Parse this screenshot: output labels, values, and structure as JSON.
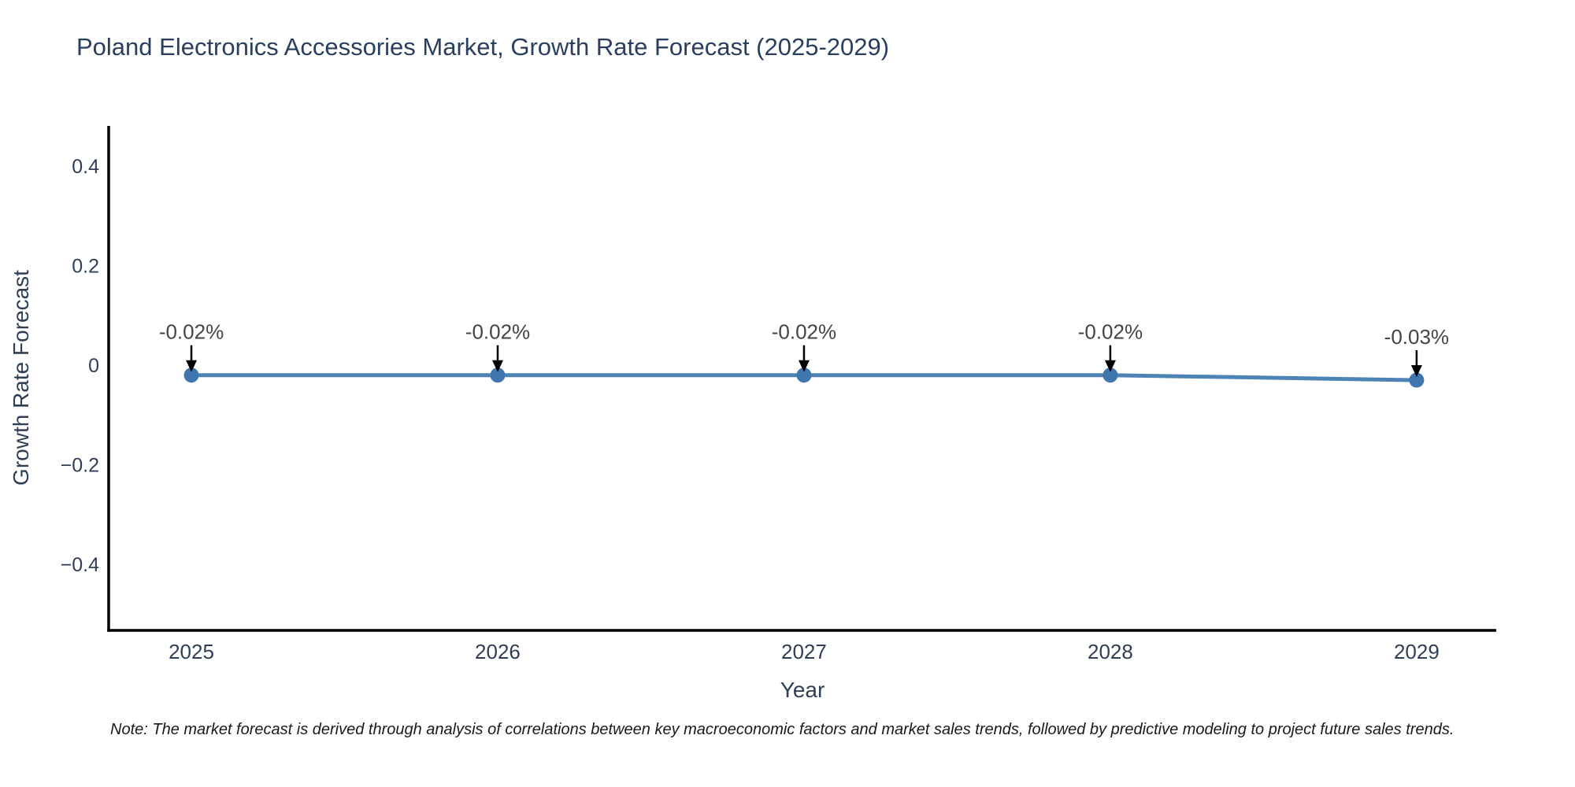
{
  "chart_data": {
    "type": "line",
    "title": "Poland Electronics Accessories Market, Growth Rate Forecast (2025-2029)",
    "xlabel": "Year",
    "ylabel": "Growth Rate Forecast",
    "note": "Note: The market forecast is derived through analysis of correlations between key macroeconomic factors and market sales trends, followed by predictive modeling to project future sales trends.",
    "x": [
      2025,
      2026,
      2027,
      2028,
      2029
    ],
    "xticks": [
      "2025",
      "2026",
      "2027",
      "2028",
      "2029"
    ],
    "series": [
      {
        "name": "Growth Rate Forecast",
        "values": [
          -0.02,
          -0.02,
          -0.02,
          -0.02,
          -0.03
        ]
      }
    ],
    "point_labels": [
      "-0.02%",
      "-0.02%",
      "-0.02%",
      "-0.02%",
      "-0.03%"
    ],
    "yticks": [
      {
        "value": 0.4,
        "label": "0.4"
      },
      {
        "value": 0.2,
        "label": "0.2"
      },
      {
        "value": 0,
        "label": "0"
      },
      {
        "value": -0.2,
        "label": "−0.2"
      },
      {
        "value": -0.4,
        "label": "−0.4"
      }
    ],
    "xlim": [
      2024.73,
      2029.26
    ],
    "ylim": [
      -0.533,
      0.481
    ],
    "grid": false,
    "legend": "none",
    "annotations_have_arrows": true,
    "colors": {
      "line": "#4e84b5",
      "marker": "#3f76ad",
      "axis": "#000000",
      "tick_text": "#2f3f56",
      "title_text": "#2a3f5f",
      "annotation_text": "#444444",
      "arrow": "#000000",
      "background": "#ffffff"
    }
  }
}
